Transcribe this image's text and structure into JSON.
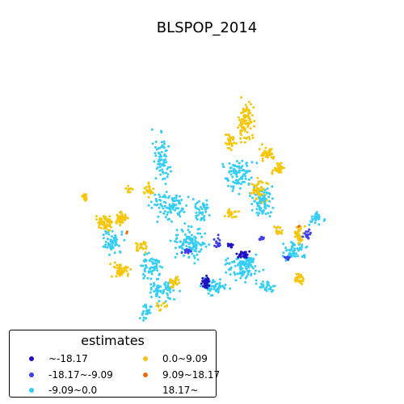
{
  "title": "BLSPOP_2014",
  "legend": {
    "title": "estimates",
    "items": [
      {
        "label": "~-18.17",
        "color": "#1f0fc4"
      },
      {
        "label": "-18.17~-9.09",
        "color": "#3f3ff0"
      },
      {
        "label": "-9.09~0.0",
        "color": "#34cdf5"
      },
      {
        "label": "0.0~9.09",
        "color": "#f5c60b"
      },
      {
        "label": "9.09~18.17",
        "color": "#f26b10"
      },
      {
        "label": "18.17~",
        "color": "#ffffff"
      }
    ]
  },
  "chart_data": {
    "type": "scatter",
    "title": "BLSPOP_2014",
    "legend_title": "estimates",
    "legend_position": "bottom-left",
    "classes": [
      "~-18.17",
      "-18.17~-9.09",
      "-9.09~0.0",
      "0.0~9.09",
      "9.09~18.17",
      "18.17~"
    ],
    "grid": false,
    "axes": false
  }
}
